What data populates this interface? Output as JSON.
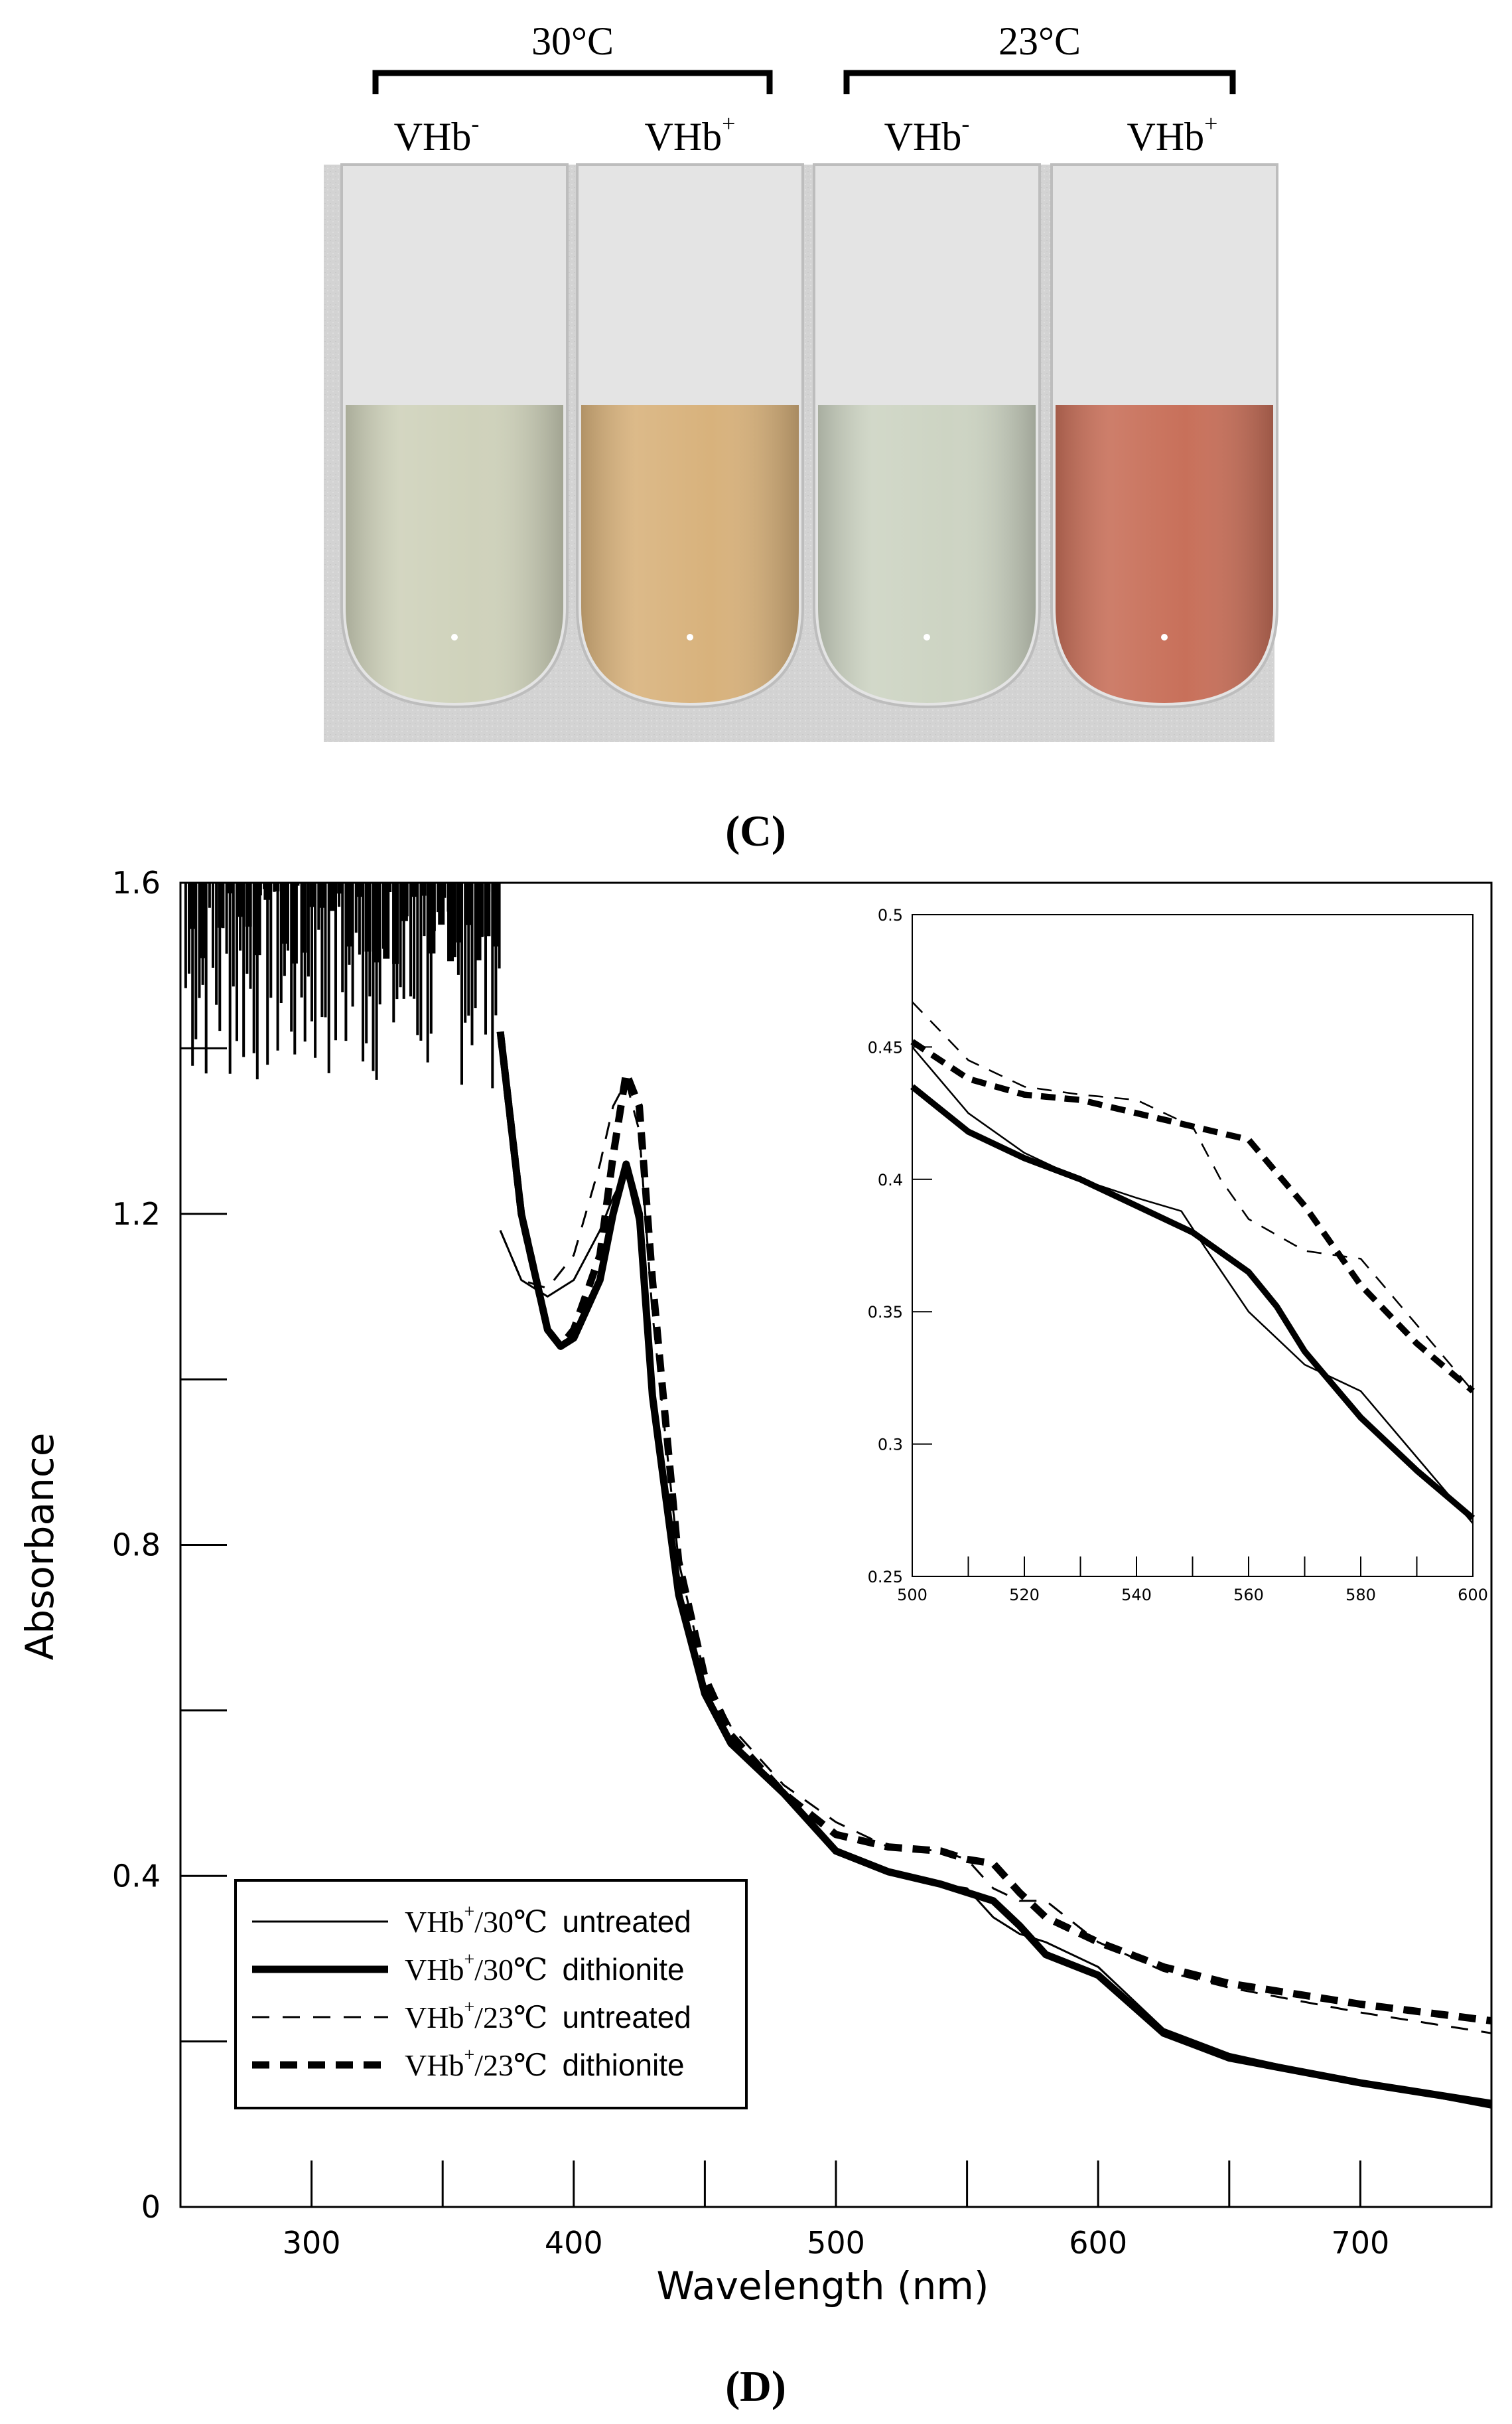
{
  "panel_c": {
    "label": "(C)",
    "groups": [
      {
        "temp": "30°C",
        "tubes": [
          {
            "base": "VHb",
            "sup": "-",
            "color": "#cfd2bb"
          },
          {
            "base": "VHb",
            "sup": "+",
            "color": "#d8b27c"
          }
        ]
      },
      {
        "temp": "23°C",
        "tubes": [
          {
            "base": "VHb",
            "sup": "-",
            "color": "#cdd4c3"
          },
          {
            "base": "VHb",
            "sup": "+",
            "color": "#c8705a"
          }
        ]
      }
    ]
  },
  "panel_d": {
    "label": "(D)"
  },
  "chart_data": [
    {
      "type": "line",
      "title": "",
      "xlabel": "Wavelength (nm)",
      "ylabel": "Absorbance",
      "xlim": [
        250,
        750
      ],
      "ylim": [
        0,
        1.6
      ],
      "xticks": [
        "300",
        "400",
        "500",
        "600",
        "700"
      ],
      "yticks": [
        "0",
        "0.4",
        "0.8",
        "1.2",
        "1.6"
      ],
      "legend_position": "bottom-left",
      "series": [
        {
          "name": "VHb+/30℃ untreated",
          "legend_base": "VHb",
          "legend_sup": "+",
          "legend_temp": "/30℃",
          "legend_treat": "untreated",
          "style": "thin-solid",
          "x": [
            372,
            380,
            390,
            400,
            410,
            415,
            420,
            425,
            430,
            440,
            450,
            460,
            480,
            500,
            520,
            540,
            550,
            560,
            570,
            580,
            600,
            625,
            650,
            700,
            750
          ],
          "y": [
            1.18,
            1.12,
            1.1,
            1.12,
            1.18,
            1.22,
            1.25,
            1.18,
            0.98,
            0.74,
            0.62,
            0.56,
            0.5,
            0.43,
            0.405,
            0.39,
            0.385,
            0.35,
            0.33,
            0.32,
            0.29,
            0.215,
            0.185,
            0.15,
            0.12
          ]
        },
        {
          "name": "VHb+/30℃ dithionite",
          "legend_base": "VHb",
          "legend_sup": "+",
          "legend_temp": "/30℃",
          "legend_treat": "dithionite",
          "style": "thick-solid",
          "x": [
            372,
            380,
            390,
            395,
            400,
            410,
            415,
            420,
            425,
            430,
            440,
            450,
            460,
            480,
            500,
            520,
            540,
            550,
            560,
            570,
            580,
            600,
            625,
            650,
            700,
            750
          ],
          "y": [
            1.42,
            1.2,
            1.06,
            1.04,
            1.05,
            1.12,
            1.2,
            1.26,
            1.2,
            0.98,
            0.74,
            0.62,
            0.56,
            0.5,
            0.43,
            0.405,
            0.39,
            0.38,
            0.37,
            0.34,
            0.305,
            0.28,
            0.21,
            0.18,
            0.15,
            0.125
          ]
        },
        {
          "name": "VHb+/23℃ untreated",
          "legend_base": "VHb",
          "legend_sup": "+",
          "legend_temp": "/23℃",
          "legend_treat": "untreated",
          "style": "thin-dash",
          "x": [
            372,
            380,
            390,
            400,
            410,
            415,
            420,
            425,
            430,
            440,
            450,
            460,
            480,
            500,
            520,
            540,
            550,
            560,
            570,
            580,
            600,
            625,
            650,
            700,
            750
          ],
          "y": [
            1.18,
            1.12,
            1.11,
            1.15,
            1.26,
            1.33,
            1.36,
            1.3,
            1.08,
            0.78,
            0.64,
            0.58,
            0.51,
            0.465,
            0.435,
            0.43,
            0.42,
            0.385,
            0.37,
            0.37,
            0.32,
            0.285,
            0.265,
            0.235,
            0.21
          ]
        },
        {
          "name": "VHb+/23℃ dithionite",
          "legend_base": "VHb",
          "legend_sup": "+",
          "legend_temp": "/23℃",
          "legend_treat": "dithionite",
          "style": "thick-dash",
          "x": [
            372,
            380,
            390,
            395,
            400,
            410,
            415,
            420,
            425,
            430,
            440,
            450,
            460,
            480,
            500,
            520,
            540,
            550,
            560,
            570,
            580,
            600,
            625,
            650,
            700,
            750
          ],
          "y": [
            1.42,
            1.2,
            1.06,
            1.04,
            1.06,
            1.15,
            1.27,
            1.37,
            1.33,
            1.12,
            0.78,
            0.64,
            0.57,
            0.5,
            0.45,
            0.435,
            0.43,
            0.42,
            0.415,
            0.38,
            0.35,
            0.32,
            0.29,
            0.27,
            0.245,
            0.225
          ]
        }
      ]
    },
    {
      "type": "line",
      "title": "inset",
      "xlabel": "",
      "ylabel": "",
      "xlim": [
        500,
        600
      ],
      "ylim": [
        0.25,
        0.5
      ],
      "xticks": [
        "500",
        "520",
        "540",
        "560",
        "580",
        "600"
      ],
      "yticks": [
        "0.25",
        "0.3",
        "0.35",
        "0.4",
        "0.45",
        "0.5"
      ],
      "series": [
        {
          "name": "VHb+/30℃ untreated",
          "style": "thin-solid",
          "x": [
            500,
            510,
            520,
            530,
            540,
            548,
            552,
            560,
            570,
            580,
            590,
            600
          ],
          "y": [
            0.45,
            0.425,
            0.41,
            0.4,
            0.393,
            0.388,
            0.375,
            0.35,
            0.33,
            0.32,
            0.295,
            0.27
          ]
        },
        {
          "name": "VHb+/30℃ dithionite",
          "style": "thick-solid",
          "x": [
            500,
            510,
            520,
            530,
            540,
            550,
            560,
            565,
            570,
            580,
            590,
            600
          ],
          "y": [
            0.435,
            0.418,
            0.408,
            0.4,
            0.39,
            0.38,
            0.365,
            0.352,
            0.335,
            0.31,
            0.29,
            0.272
          ]
        },
        {
          "name": "VHb+/23℃ untreated",
          "style": "thin-dash",
          "x": [
            500,
            510,
            520,
            530,
            540,
            550,
            555,
            560,
            570,
            580,
            590,
            600
          ],
          "y": [
            0.467,
            0.445,
            0.435,
            0.432,
            0.43,
            0.42,
            0.4,
            0.385,
            0.373,
            0.37,
            0.345,
            0.32
          ]
        },
        {
          "name": "VHb+/23℃ dithionite",
          "style": "thick-dash",
          "x": [
            500,
            510,
            520,
            530,
            540,
            550,
            560,
            570,
            580,
            590,
            600
          ],
          "y": [
            0.452,
            0.438,
            0.432,
            0.43,
            0.425,
            0.42,
            0.415,
            0.39,
            0.36,
            0.338,
            0.32
          ]
        }
      ]
    }
  ]
}
